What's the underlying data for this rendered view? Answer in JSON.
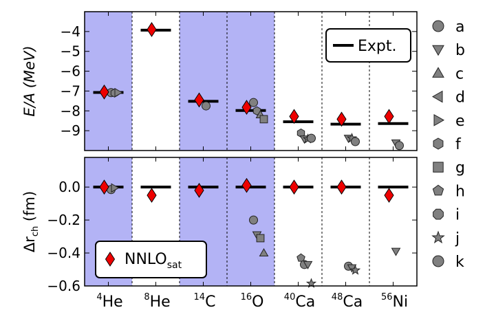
{
  "chart_data": {
    "type": "scatter",
    "nuclei": [
      {
        "mass": "4",
        "symbol": "He",
        "shaded": true
      },
      {
        "mass": "8",
        "symbol": "He",
        "shaded": false
      },
      {
        "mass": "14",
        "symbol": "C",
        "shaded": true
      },
      {
        "mass": "16",
        "symbol": "O",
        "shaded": true
      },
      {
        "mass": "40",
        "symbol": "Ca",
        "shaded": false
      },
      {
        "mass": "48",
        "symbol": "Ca",
        "shaded": false
      },
      {
        "mass": "56",
        "symbol": "Ni",
        "shaded": false
      }
    ],
    "shade_color": "#b3b3f5",
    "nnlo_color": "#ee0000",
    "marker_gray": "#808080",
    "top_panel": {
      "ylabel": "E/A (MeV)",
      "ylim": [
        -10,
        -3
      ],
      "yticks": [
        "−4",
        "−5",
        "−6",
        "−7",
        "−8",
        "−9"
      ],
      "ytick_values": [
        -4,
        -5,
        -6,
        -7,
        -8,
        -9
      ],
      "legend": {
        "label": "Expt.",
        "placement": "top-right"
      },
      "expt": [
        -7.07,
        -3.93,
        -7.52,
        -7.98,
        -8.55,
        -8.67,
        -8.64
      ],
      "nnlo_sat": [
        -7.05,
        -3.9,
        -7.45,
        -7.82,
        -8.28,
        -8.42,
        -8.28
      ],
      "others": [
        {
          "nucleus": 0,
          "marker": "a",
          "value": -7.08
        },
        {
          "nucleus": 0,
          "marker": "f",
          "value": -7.1
        },
        {
          "nucleus": 0,
          "marker": "e",
          "value": -7.08
        },
        {
          "nucleus": 2,
          "marker": "k",
          "value": -7.75
        },
        {
          "nucleus": 3,
          "marker": "k",
          "value": -7.58
        },
        {
          "nucleus": 3,
          "marker": "f",
          "value": -8.0
        },
        {
          "nucleus": 3,
          "marker": "c",
          "value": -8.2
        },
        {
          "nucleus": 3,
          "marker": "g",
          "value": -8.42
        },
        {
          "nucleus": 4,
          "marker": "f",
          "value": -9.12
        },
        {
          "nucleus": 4,
          "marker": "b",
          "value": -9.42
        },
        {
          "nucleus": 4,
          "marker": "j",
          "value": -9.42
        },
        {
          "nucleus": 4,
          "marker": "k",
          "value": -9.38
        },
        {
          "nucleus": 5,
          "marker": "b",
          "value": -9.38
        },
        {
          "nucleus": 5,
          "marker": "j",
          "value": -9.38
        },
        {
          "nucleus": 5,
          "marker": "k",
          "value": -9.55
        },
        {
          "nucleus": 6,
          "marker": "b",
          "value": -9.62
        },
        {
          "nucleus": 6,
          "marker": "k",
          "value": -9.75
        }
      ]
    },
    "bottom_panel": {
      "ylabel": "Δr_ch (fm)",
      "ylim": [
        -0.6,
        0.18
      ],
      "yticks": [
        "0.0",
        "−0.2",
        "−0.4",
        "−0.6"
      ],
      "ytick_values": [
        0.0,
        -0.2,
        -0.4,
        -0.6
      ],
      "legend": {
        "label": "NNLO",
        "subscript": "sat",
        "placement": "bottom-left"
      },
      "expt": [
        0,
        0,
        0,
        0,
        0,
        0,
        0
      ],
      "nnlo_sat": [
        0.0,
        -0.05,
        -0.02,
        0.01,
        0.0,
        0.0,
        -0.05
      ],
      "others": [
        {
          "nucleus": 0,
          "marker": "k",
          "value": -0.015
        },
        {
          "nucleus": 0,
          "marker": "e",
          "value": -0.005
        },
        {
          "nucleus": 3,
          "marker": "k",
          "value": -0.2
        },
        {
          "nucleus": 3,
          "marker": "b",
          "value": -0.29
        },
        {
          "nucleus": 3,
          "marker": "g",
          "value": -0.31
        },
        {
          "nucleus": 3,
          "marker": "c",
          "value": -0.4
        },
        {
          "nucleus": 4,
          "marker": "h",
          "value": -0.43
        },
        {
          "nucleus": 4,
          "marker": "k",
          "value": -0.47
        },
        {
          "nucleus": 4,
          "marker": "b",
          "value": -0.47
        },
        {
          "nucleus": 4,
          "marker": "j",
          "value": -0.585
        },
        {
          "nucleus": 5,
          "marker": "k",
          "value": -0.48
        },
        {
          "nucleus": 5,
          "marker": "b",
          "value": -0.49
        },
        {
          "nucleus": 5,
          "marker": "j",
          "value": -0.505
        },
        {
          "nucleus": 6,
          "marker": "b",
          "value": -0.39
        }
      ]
    },
    "marker_legend": [
      {
        "key": "a",
        "shape": "circle"
      },
      {
        "key": "b",
        "shape": "triangle-down"
      },
      {
        "key": "c",
        "shape": "triangle-up"
      },
      {
        "key": "d",
        "shape": "triangle-left"
      },
      {
        "key": "e",
        "shape": "triangle-right"
      },
      {
        "key": "f",
        "shape": "hexagon"
      },
      {
        "key": "g",
        "shape": "square"
      },
      {
        "key": "h",
        "shape": "pentagon"
      },
      {
        "key": "i",
        "shape": "octagon"
      },
      {
        "key": "j",
        "shape": "star"
      },
      {
        "key": "k",
        "shape": "circle"
      }
    ]
  }
}
